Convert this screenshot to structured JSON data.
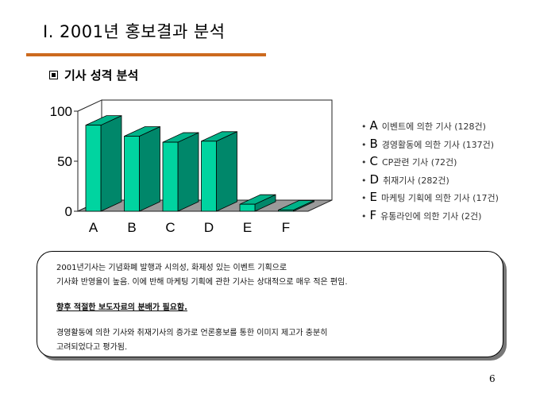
{
  "slide": {
    "title": "Ⅰ. 2001년 홍보결과 분석",
    "section_title": "기사 성격 분석",
    "page_number": "6"
  },
  "chart_data": {
    "type": "bar",
    "categories": [
      "A",
      "B",
      "C",
      "D",
      "E",
      "F"
    ],
    "values": [
      86,
      75,
      69,
      70,
      7,
      1
    ],
    "y_ticks": [
      "100",
      "50",
      "0"
    ],
    "ylim": [
      0,
      100
    ],
    "grid": false,
    "style": "3d",
    "legend_position": "right"
  },
  "legend": [
    {
      "letter": "A",
      "text": "이벤트에 의한 기사 (128건)"
    },
    {
      "letter": "B",
      "text": "경영활동에 의한 기사 (137건)"
    },
    {
      "letter": "C",
      "text": "CP관련 기사 (72건)"
    },
    {
      "letter": "D",
      "text": "취재기사 (282건)"
    },
    {
      "letter": "E",
      "text": "마케팅 기획에 의한 기사 (17건)"
    },
    {
      "letter": "F",
      "text": "유통라인에 의한 기사 (2건)"
    }
  ],
  "note": {
    "line1": "2001년기사는 기념화폐 발행과 시의성, 화제성 있는 이벤트 기획으로",
    "line2": "기사화 반영율이 높음. 이에 반해 마케팅 기획에 관한 기사는 상대적으로 매우 적은 편임.",
    "emphasis": "향후 적절한 보도자료의 분배가 필요함.",
    "line3": "경영활동에 의한 기사와 취재기사의 증가로 언론홍보를 통한 이미지 제고가 충분히",
    "line4": "고려되었다고 평가됨."
  },
  "colors": {
    "accent_rule": "#cc6a1e",
    "bar_front": "#00d4a0",
    "bar_side": "#00876a",
    "bar_top": "#00b389",
    "floor": "#9a9a9a"
  }
}
